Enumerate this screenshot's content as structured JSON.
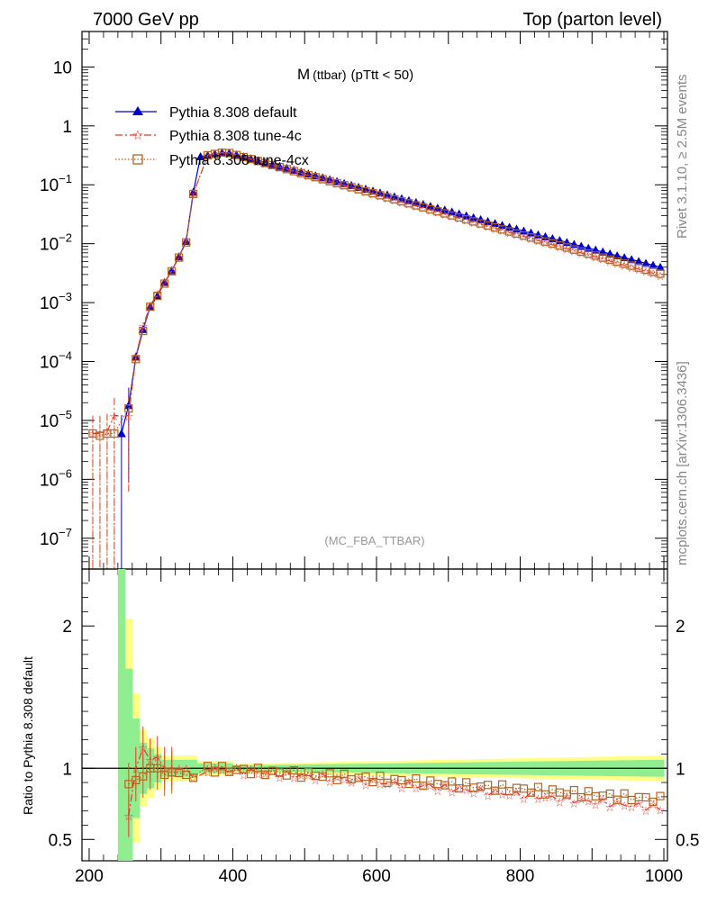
{
  "header": {
    "left": "7000 GeV pp",
    "right": "Top (parton level)"
  },
  "side": {
    "rivet": "Rivet 3.1.10, ≥ 2.5M events",
    "mcplots": "mcplots.cern.ch [arXiv:1306.3436]"
  },
  "colors": {
    "default": "#0000cc",
    "tune4c": "#e8362b",
    "tune4cx": "#b5651d",
    "band_inner": "#90ee90",
    "band_outer": "#ffff88"
  },
  "chart_data": [
    {
      "type": "line",
      "title": "M",
      "title_sub": "(ttbar)",
      "title_cut": "(pTtt < 50)",
      "watermark": "(MC_FBA_TTBAR)",
      "xlabel": "",
      "ylabel": "",
      "yscale": "log",
      "ylim": [
        3e-08,
        40
      ],
      "xlim": [
        190,
        1005
      ],
      "y_ticks": [
        {
          "v": 10,
          "base": "10",
          "exp": ""
        },
        {
          "v": 1,
          "base": "1",
          "exp": ""
        },
        {
          "v": 0.1,
          "base": "10",
          "exp": "−1"
        },
        {
          "v": 0.01,
          "base": "10",
          "exp": "−2"
        },
        {
          "v": 0.001,
          "base": "10",
          "exp": "−3"
        },
        {
          "v": 0.0001,
          "base": "10",
          "exp": "−4"
        },
        {
          "v": 1e-05,
          "base": "10",
          "exp": "−5"
        },
        {
          "v": 1e-06,
          "base": "10",
          "exp": "−6"
        },
        {
          "v": 1e-07,
          "base": "10",
          "exp": "−7"
        }
      ],
      "legend": [
        {
          "name": "Pythia 8.308 default",
          "marker": "triangle",
          "style": "solid",
          "color": "#0000cc"
        },
        {
          "name": "Pythia 8.308 tune-4c",
          "marker": "star",
          "style": "dashdot",
          "color": "#e8362b"
        },
        {
          "name": "Pythia 8.308 tune-4cx",
          "marker": "square-open",
          "style": "dotted",
          "color": "#b5651d"
        }
      ],
      "series": [
        {
          "name": "Pythia 8.308 default",
          "x": [
            245,
            255,
            265,
            275,
            285,
            295,
            305,
            315,
            325,
            335,
            345,
            355
          ],
          "values": [
            6e-06,
            1.8e-05,
            0.00012,
            0.00035,
            0.00085,
            0.0013,
            0.0022,
            0.0035,
            0.006,
            0.011,
            0.075,
            0.3
          ]
        },
        {
          "name": "Pythia 8.308 tune-4c",
          "x": [
            205,
            215,
            225,
            235,
            255,
            265,
            275,
            285,
            295,
            305,
            315,
            325,
            335,
            345
          ],
          "values": [
            6e-06,
            6e-06,
            6.5e-06,
            1.2e-05,
            1.2e-05,
            0.00012,
            0.0004,
            0.0009,
            0.0014,
            0.0022,
            0.0035,
            0.006,
            0.011,
            0.07
          ]
        },
        {
          "name": "Pythia 8.308 tune-4cx",
          "x": [
            205,
            215,
            225,
            235,
            255,
            265,
            275,
            285,
            295,
            305,
            315,
            325,
            335,
            345
          ],
          "values": [
            6e-06,
            5.5e-06,
            6e-06,
            6e-06,
            1.6e-05,
            0.00011,
            0.00033,
            0.00085,
            0.0013,
            0.0021,
            0.0034,
            0.0058,
            0.0105,
            0.07
          ]
        }
      ],
      "shape_note": "above 355 the three curves follow a falling exponential: peak ~0.36 at 390, default ~0.004 at 995, tune-4c ~0.0028 at 995"
    },
    {
      "type": "line",
      "ylabel": "Ratio to Pythia 8.308 default",
      "ylim": [
        0.35,
        2.4
      ],
      "xlim": [
        190,
        1005
      ],
      "x_ticks": [
        200,
        400,
        600,
        800,
        1000
      ],
      "y_ticks": [
        0.5,
        1,
        2
      ],
      "reference_value": 1,
      "bands": "green inner / yellow outer uncertainty band around 1, wide below 300 and narrow above"
    }
  ]
}
